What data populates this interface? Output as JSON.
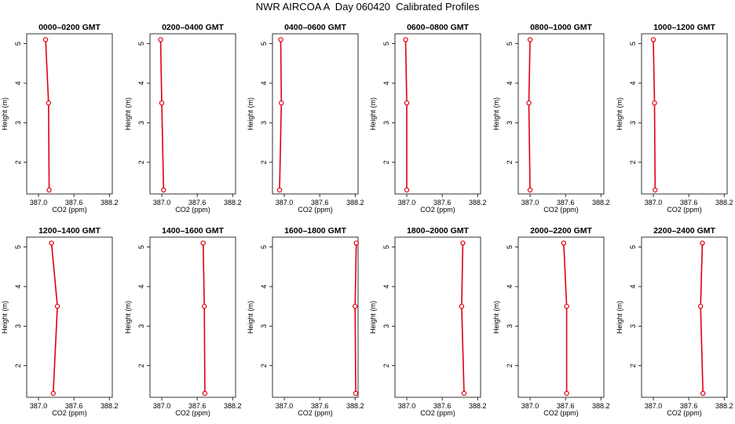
{
  "figure_title": "NWR AIRCOA A  Day 060420  Calibrated Profiles",
  "colors": {
    "profile_line": "#e0000f",
    "marker": "#e0000f",
    "axis": "#000000"
  },
  "chart_data": {
    "type": "line",
    "xlabel": "CO2 (ppm)",
    "ylabel": "Height (m)",
    "xlim": [
      386.8,
      388.25
    ],
    "ylim": [
      1.2,
      5.25
    ],
    "x_ticks": [
      "387.0",
      "387.6",
      "388.2"
    ],
    "x_tick_values": [
      387.0,
      387.6,
      388.2
    ],
    "y_ticks": [
      "2",
      "3",
      "4",
      "5"
    ],
    "y_tick_values": [
      2,
      3,
      4,
      5
    ],
    "grid": false,
    "heights": [
      5.1,
      3.5,
      1.3
    ],
    "panels": [
      {
        "title": "0000–0200 GMT",
        "co2": [
          387.12,
          387.17,
          387.18
        ]
      },
      {
        "title": "0200–0400 GMT",
        "co2": [
          386.98,
          387.0,
          387.03
        ]
      },
      {
        "title": "0400–0600 GMT",
        "co2": [
          386.94,
          386.95,
          386.92
        ]
      },
      {
        "title": "0600–0800 GMT",
        "co2": [
          386.98,
          387.0,
          387.0
        ]
      },
      {
        "title": "0800–1000 GMT",
        "co2": [
          387.0,
          386.98,
          387.0
        ]
      },
      {
        "title": "1000–1200 GMT",
        "co2": [
          387.0,
          387.02,
          387.03
        ]
      },
      {
        "title": "1200–1400 GMT",
        "co2": [
          387.22,
          387.32,
          387.25
        ]
      },
      {
        "title": "1400–1600 GMT",
        "co2": [
          387.7,
          387.72,
          387.73
        ]
      },
      {
        "title": "1600–1800 GMT",
        "co2": [
          388.22,
          388.2,
          388.21
        ]
      },
      {
        "title": "1800–2000 GMT",
        "co2": [
          387.95,
          387.93,
          387.97
        ]
      },
      {
        "title": "2000–2200 GMT",
        "co2": [
          387.57,
          387.62,
          387.62
        ]
      },
      {
        "title": "2200–2400 GMT",
        "co2": [
          387.83,
          387.8,
          387.84
        ]
      }
    ]
  }
}
